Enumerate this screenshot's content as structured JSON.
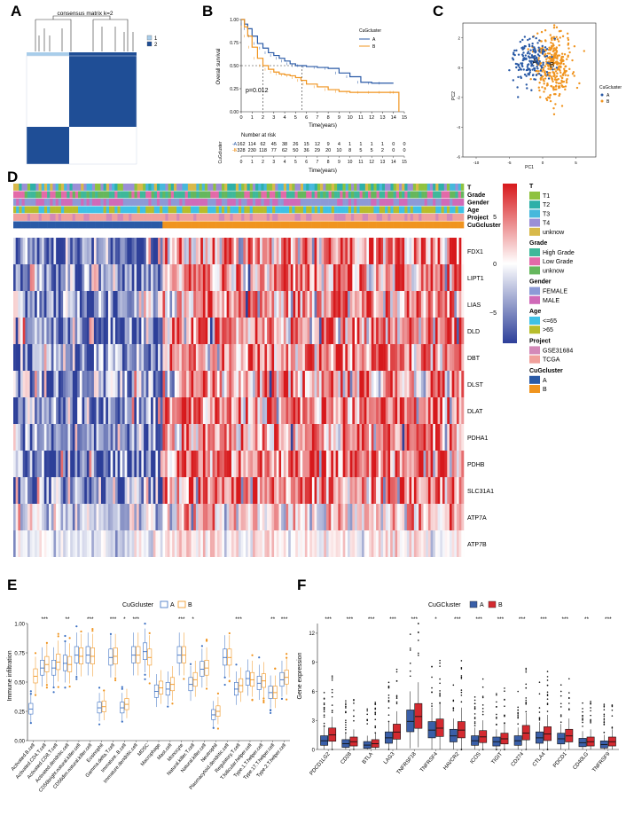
{
  "panel_letters": [
    "A",
    "B",
    "C",
    "D",
    "E",
    "F"
  ],
  "colors": {
    "clusterA": "#2a5aa6",
    "clusterB": "#f0941f",
    "heatLow": "#2d3f99",
    "heatMid": "#ffffff",
    "heatHigh": "#d7191c",
    "boxF_A": "#3a5fa8",
    "boxF_B": "#d42a30"
  },
  "panelA": {
    "title": "consensus matrix k=2",
    "legend": [
      "1",
      "2"
    ]
  },
  "chart_data": [
    {
      "id": "B",
      "type": "line",
      "title": "",
      "xlabel": "Time(years)",
      "ylabel": "Overall survival",
      "xlim": [
        0,
        15
      ],
      "ylim": [
        0,
        1
      ],
      "xticks": [
        "0",
        "1",
        "2",
        "3",
        "4",
        "5",
        "6",
        "7",
        "8",
        "9",
        "10",
        "11",
        "12",
        "13",
        "14",
        "15"
      ],
      "yticks": [
        "0.00",
        "0.25",
        "0.50",
        "0.75",
        "1.00"
      ],
      "legend_title": "CuGcluster",
      "legend": [
        "A",
        "B"
      ],
      "annotation": "p=0.012",
      "series": [
        {
          "name": "A",
          "x": [
            0,
            0.3,
            0.6,
            1,
            1.5,
            2,
            2.5,
            3,
            3.5,
            4,
            4.5,
            5,
            5.5,
            6,
            7,
            8,
            9,
            10,
            11,
            12,
            13,
            14
          ],
          "y": [
            1,
            0.95,
            0.9,
            0.82,
            0.74,
            0.69,
            0.64,
            0.61,
            0.58,
            0.55,
            0.52,
            0.5,
            0.5,
            0.49,
            0.48,
            0.47,
            0.42,
            0.38,
            0.32,
            0.31,
            0.31,
            0.31
          ]
        },
        {
          "name": "B",
          "x": [
            0,
            0.3,
            0.6,
            1,
            1.5,
            2,
            2.5,
            3,
            3.5,
            4,
            4.5,
            5,
            5.5,
            6,
            7,
            8,
            9,
            10,
            11,
            12,
            13,
            14,
            14.3,
            14.5
          ],
          "y": [
            1,
            0.92,
            0.82,
            0.7,
            0.58,
            0.5,
            0.46,
            0.43,
            0.41,
            0.4,
            0.39,
            0.37,
            0.34,
            0.3,
            0.27,
            0.24,
            0.22,
            0.21,
            0.21,
            0.21,
            0.21,
            0.21,
            0.21,
            0.0
          ]
        }
      ],
      "risk_table": {
        "title": "Number at risk",
        "ylabel": "CuGcluster",
        "xlabel": "Time(years)",
        "rows": [
          {
            "name": "A",
            "values": [
              "162",
              "114",
              "62",
              "45",
              "38",
              "26",
              "15",
              "12",
              "9",
              "4",
              "1",
              "1",
              "1",
              "1",
              "0",
              "0"
            ]
          },
          {
            "name": "B",
            "values": [
              "328",
              "230",
              "118",
              "77",
              "62",
              "50",
              "36",
              "29",
              "20",
              "10",
              "8",
              "5",
              "5",
              "2",
              "0",
              "0"
            ]
          }
        ]
      }
    },
    {
      "id": "C",
      "type": "scatter",
      "xlabel": "PC1",
      "ylabel": "PC2",
      "xlim": [
        -12,
        8
      ],
      "ylim": [
        -6,
        3
      ],
      "xticks": [
        "-10",
        "-5",
        "0",
        "5"
      ],
      "yticks": [
        "2",
        "0",
        "-2",
        "-4",
        "-6"
      ],
      "legend_title": "CuGcluster",
      "legend": [
        "A",
        "B"
      ],
      "centroids": [
        {
          "label": "A",
          "x": -1.2,
          "y": 0.4
        },
        {
          "label": "B",
          "x": 1.4,
          "y": 0.2
        }
      ]
    },
    {
      "id": "D",
      "type": "heatmap",
      "scale_ticks": [
        "5",
        "0",
        "−5"
      ],
      "annotation_rows": [
        "T",
        "Grade",
        "Gender",
        "Age",
        "Project",
        "CuGcluster"
      ],
      "genes": [
        "FDX1",
        "LIPT1",
        "LIAS",
        "DLD",
        "DBT",
        "DLST",
        "DLAT",
        "PDHA1",
        "PDHB",
        "SLC31A1",
        "ATP7A",
        "ATP7B"
      ],
      "legend_groups": [
        {
          "title": "T",
          "items": [
            {
              "label": "T1",
              "color": "#8fc23f"
            },
            {
              "label": "T2",
              "color": "#2eb0a8"
            },
            {
              "label": "T3",
              "color": "#47b8dc"
            },
            {
              "label": "T4",
              "color": "#9b8fd6"
            },
            {
              "label": "unknow",
              "color": "#d8b94a"
            }
          ]
        },
        {
          "title": "Grade",
          "items": [
            {
              "label": "High Grade",
              "color": "#3fb89a"
            },
            {
              "label": "Low Grade",
              "color": "#e36aa8"
            },
            {
              "label": "unknow",
              "color": "#66b75d"
            }
          ]
        },
        {
          "title": "Gender",
          "items": [
            {
              "label": "FEMALE",
              "color": "#8c9ad6"
            },
            {
              "label": "MALE",
              "color": "#d06ab8"
            }
          ]
        },
        {
          "title": "Age",
          "items": [
            {
              "label": "<=65",
              "color": "#3fc1e5"
            },
            {
              "label": ">65",
              "color": "#b7bd2c"
            }
          ]
        },
        {
          "title": "Project",
          "items": [
            {
              "label": "GSE31684",
              "color": "#d389b8"
            },
            {
              "label": "TCGA",
              "color": "#f0a09b"
            }
          ]
        },
        {
          "title": "CuGcluster",
          "items": [
            {
              "label": "A",
              "color": "#2a5aa6"
            },
            {
              "label": "B",
              "color": "#f0941f"
            }
          ]
        }
      ]
    },
    {
      "id": "E",
      "type": "box",
      "ylabel": "Immune infiltration",
      "yticks": [
        "0.00",
        "0.25",
        "0.50",
        "0.75",
        "1.00"
      ],
      "ylim": [
        0,
        1
      ],
      "legend_title": "CuGcluster",
      "legend": [
        "A",
        "B"
      ],
      "categories": [
        "Activated.B.cell",
        "Activated.CD4.T.cell",
        "Activated.CD8.T.cell",
        "Activated.dendritic.cell",
        "CD56bright.natural.killer.cell",
        "CD56dim.natural.killer.cell",
        "Eosinophil",
        "Gamma.delta.T.cell",
        "Immature..B.cell",
        "Immature.dendritic.cell",
        "MDSC",
        "Macrophage",
        "Mast.cell",
        "Monocyte",
        "Natural.killer.T.cell",
        "Natural.killer.cell",
        "Neutrophil",
        "Plasmacytoid.dendritic.cell",
        "Regulatory.T.cell",
        "T.follicular.helper.cell",
        "Type.1.T.helper.cell",
        "Type.17.T.helper.cell",
        "Type.2.T.helper.cell"
      ],
      "significance": [
        "",
        "***",
        "",
        "**",
        "",
        "***",
        "",
        "***",
        "*",
        "***",
        "",
        "",
        "",
        "***",
        "*",
        "",
        "",
        "",
        "***",
        "",
        "",
        "**",
        "***"
      ],
      "series": [
        {
          "name": "A",
          "medians": [
            0.27,
            0.62,
            0.62,
            0.66,
            0.73,
            0.73,
            0.28,
            0.71,
            0.28,
            0.73,
            0.76,
            0.42,
            0.44,
            0.73,
            0.48,
            0.61,
            0.22,
            0.71,
            0.44,
            0.53,
            0.49,
            0.41,
            0.52
          ]
        },
        {
          "name": "B",
          "medians": [
            0.55,
            0.65,
            0.67,
            0.65,
            0.72,
            0.72,
            0.29,
            0.72,
            0.31,
            0.73,
            0.71,
            0.45,
            0.48,
            0.73,
            0.52,
            0.62,
            0.25,
            0.71,
            0.47,
            0.52,
            0.51,
            0.41,
            0.54
          ]
        }
      ]
    },
    {
      "id": "F",
      "type": "box",
      "ylabel": "Gene expression",
      "yticks": [
        "0",
        "3",
        "6",
        "9",
        "12"
      ],
      "ylim": [
        0,
        13
      ],
      "legend_title": "CuGCluster",
      "legend": [
        "A",
        "B"
      ],
      "categories": [
        "PDCD1LG2",
        "CD28",
        "BTLA",
        "LAG3",
        "TNFRSF18",
        "TNFRSF4",
        "HAVCR2",
        "ICOS",
        "TIGIT",
        "CD274",
        "CTLA4",
        "PDCD1",
        "CD40LG",
        "TNFRSF9"
      ],
      "significance": [
        "***",
        "***",
        "***",
        "***",
        "***",
        "*",
        "***",
        "***",
        "***",
        "***",
        "***",
        "***",
        "**",
        "***"
      ],
      "series": [
        {
          "name": "A",
          "medians": [
            0.9,
            0.6,
            0.45,
            1.2,
            2.9,
            2.0,
            1.4,
            0.9,
            0.8,
            0.9,
            1.2,
            1.1,
            0.7,
            0.5
          ]
        },
        {
          "name": "B",
          "medians": [
            1.5,
            0.8,
            0.6,
            1.8,
            3.4,
            2.2,
            2.0,
            1.3,
            1.1,
            1.7,
            1.6,
            1.4,
            0.8,
            0.8
          ]
        }
      ]
    }
  ]
}
